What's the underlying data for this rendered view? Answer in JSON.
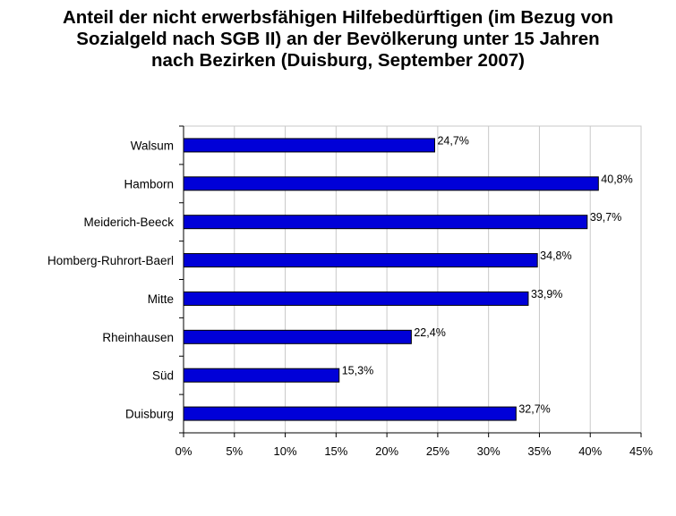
{
  "chart_data": {
    "type": "bar",
    "orientation": "horizontal",
    "title_lines": [
      "Anteil der nicht erwerbsfähigen Hilfebedürftigen (im Bezug von",
      "Sozialgeld nach SGB II) an der Bevölkerung unter 15 Jahren",
      "nach Bezirken (Duisburg, September 2007)"
    ],
    "categories": [
      "Walsum",
      "Hamborn",
      "Meiderich-Beeck",
      "Homberg-Ruhrort-Baerl",
      "Mitte",
      "Rheinhausen",
      "Süd",
      "Duisburg"
    ],
    "values": [
      24.7,
      40.8,
      39.7,
      34.8,
      33.9,
      22.4,
      15.3,
      32.7
    ],
    "data_labels": [
      "24,7%",
      "40,8%",
      "39,7%",
      "34,8%",
      "33,9%",
      "22,4%",
      "15,3%",
      "32,7%"
    ],
    "xlim": [
      0,
      45
    ],
    "xticks": [
      0,
      5,
      10,
      15,
      20,
      25,
      30,
      35,
      40,
      45
    ],
    "xtick_labels": [
      "0%",
      "5%",
      "10%",
      "15%",
      "20%",
      "25%",
      "30%",
      "35%",
      "40%",
      "45%"
    ],
    "grid": true,
    "legend": "none",
    "colors": {
      "bar": "#0000d8",
      "bar_edge": "#000000",
      "grid": "#c8c8c8",
      "axis": "#000000"
    }
  }
}
